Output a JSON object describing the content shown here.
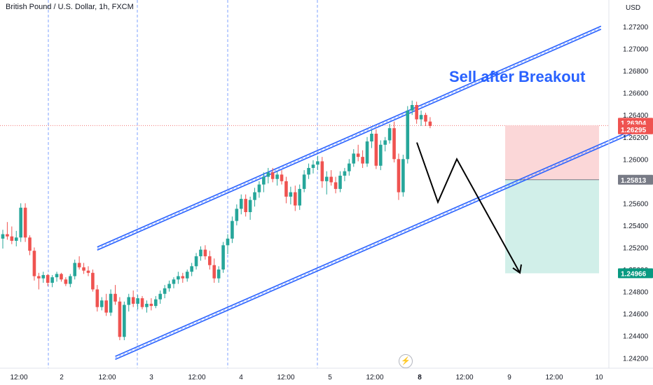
{
  "header": {
    "title": "British Pound / U.S. Dollar, 1h, FXCM",
    "currency": "USD"
  },
  "annotation": "Sell after Breakout",
  "logo_glyph": "⚡",
  "colors": {
    "bull": "#26a69a",
    "bear": "#ef5350",
    "channel": "#2962ff",
    "stop_zone": "#fbd7d8",
    "target_zone": "#d1efe9",
    "arrow": "#000000"
  },
  "chart_data": {
    "type": "candlestick",
    "symbol": "GBPUSD",
    "timeframe": "1h",
    "y_axis": {
      "min": 1.241,
      "max": 1.274,
      "ticks": [
        "1.27200",
        "1.27000",
        "1.26800",
        "1.26600",
        "1.26400",
        "1.26200",
        "1.26000",
        "1.25800",
        "1.25600",
        "1.25400",
        "1.25200",
        "1.25000",
        "1.24800",
        "1.24600",
        "1.24400",
        "1.24200"
      ]
    },
    "x_axis": {
      "labels": [
        "12:00",
        "2",
        "12:00",
        "3",
        "12:00",
        "4",
        "12:00",
        "5",
        "12:00",
        "8",
        "12:00",
        "9",
        "12:00",
        "10"
      ]
    },
    "price_labels": [
      {
        "value": "1.26304",
        "style": "red"
      },
      {
        "value": "1.26295",
        "style": "red"
      },
      {
        "value": "1.25813",
        "style": "gray"
      },
      {
        "value": "1.24966",
        "style": "green"
      }
    ],
    "candles": [
      [
        1.2528,
        1.2536,
        1.2519,
        1.2532
      ],
      [
        1.2532,
        1.2543,
        1.2527,
        1.253
      ],
      [
        1.253,
        1.2539,
        1.2523,
        1.2526
      ],
      [
        1.2526,
        1.2535,
        1.2521,
        1.2529
      ],
      [
        1.2529,
        1.256,
        1.2525,
        1.2556
      ],
      [
        1.2556,
        1.256,
        1.2525,
        1.2529
      ],
      [
        1.2529,
        1.2531,
        1.2513,
        1.2517
      ],
      [
        1.2517,
        1.252,
        1.249,
        1.2494
      ],
      [
        1.2494,
        1.2497,
        1.2482,
        1.2492
      ],
      [
        1.2492,
        1.2498,
        1.2488,
        1.2495
      ],
      [
        1.2495,
        1.2496,
        1.2485,
        1.2488
      ],
      [
        1.2488,
        1.2495,
        1.2484,
        1.2493
      ],
      [
        1.2493,
        1.2498,
        1.2489,
        1.2496
      ],
      [
        1.2496,
        1.2497,
        1.2489,
        1.2491
      ],
      [
        1.2491,
        1.2493,
        1.2485,
        1.2487
      ],
      [
        1.2487,
        1.2496,
        1.2484,
        1.2494
      ],
      [
        1.2494,
        1.2509,
        1.2491,
        1.2506
      ],
      [
        1.2506,
        1.2512,
        1.25,
        1.2502
      ],
      [
        1.2502,
        1.2506,
        1.2496,
        1.2499
      ],
      [
        1.2499,
        1.2503,
        1.2494,
        1.2497
      ],
      [
        1.2497,
        1.25,
        1.248,
        1.2482
      ],
      [
        1.2482,
        1.2486,
        1.2462,
        1.2466
      ],
      [
        1.2466,
        1.2475,
        1.2463,
        1.2472
      ],
      [
        1.2472,
        1.2478,
        1.2458,
        1.2461
      ],
      [
        1.2461,
        1.2482,
        1.2458,
        1.2478
      ],
      [
        1.2478,
        1.2486,
        1.2468,
        1.2471
      ],
      [
        1.2471,
        1.2475,
        1.2436,
        1.2439
      ],
      [
        1.2439,
        1.2471,
        1.2436,
        1.2468
      ],
      [
        1.2468,
        1.2478,
        1.2462,
        1.2475
      ],
      [
        1.2475,
        1.2481,
        1.2466,
        1.2469
      ],
      [
        1.2469,
        1.2477,
        1.2464,
        1.2474
      ],
      [
        1.2474,
        1.2476,
        1.2464,
        1.2466
      ],
      [
        1.2466,
        1.2472,
        1.2461,
        1.2469
      ],
      [
        1.2469,
        1.2474,
        1.2463,
        1.2467
      ],
      [
        1.2467,
        1.2476,
        1.2465,
        1.2473
      ],
      [
        1.2473,
        1.2481,
        1.2469,
        1.2478
      ],
      [
        1.2478,
        1.2486,
        1.2474,
        1.2483
      ],
      [
        1.2483,
        1.249,
        1.248,
        1.2487
      ],
      [
        1.2487,
        1.2493,
        1.2483,
        1.2491
      ],
      [
        1.2491,
        1.2498,
        1.2487,
        1.2494
      ],
      [
        1.2494,
        1.2497,
        1.2488,
        1.2492
      ],
      [
        1.2492,
        1.25,
        1.2489,
        1.2498
      ],
      [
        1.2498,
        1.2506,
        1.2494,
        1.2503
      ],
      [
        1.2503,
        1.2515,
        1.25,
        1.2512
      ],
      [
        1.2512,
        1.2521,
        1.2508,
        1.2518
      ],
      [
        1.2518,
        1.2522,
        1.2509,
        1.2512
      ],
      [
        1.2512,
        1.2517,
        1.25,
        1.2504
      ],
      [
        1.2504,
        1.251,
        1.2488,
        1.2492
      ],
      [
        1.2492,
        1.2503,
        1.2488,
        1.25
      ],
      [
        1.25,
        1.2525,
        1.2497,
        1.2522
      ],
      [
        1.2522,
        1.2532,
        1.2514,
        1.2528
      ],
      [
        1.2528,
        1.2548,
        1.2524,
        1.2544
      ],
      [
        1.2544,
        1.2559,
        1.254,
        1.2555
      ],
      [
        1.2555,
        1.2568,
        1.255,
        1.2564
      ],
      [
        1.2564,
        1.2568,
        1.2548,
        1.2552
      ],
      [
        1.2552,
        1.2566,
        1.2545,
        1.2563
      ],
      [
        1.2563,
        1.2574,
        1.2557,
        1.257
      ],
      [
        1.257,
        1.258,
        1.2565,
        1.2577
      ],
      [
        1.2577,
        1.2588,
        1.257,
        1.2584
      ],
      [
        1.2584,
        1.2592,
        1.2578,
        1.2588
      ],
      [
        1.2588,
        1.2592,
        1.2579,
        1.2582
      ],
      [
        1.2582,
        1.2589,
        1.2576,
        1.2586
      ],
      [
        1.2586,
        1.259,
        1.2577,
        1.258
      ],
      [
        1.258,
        1.2584,
        1.256,
        1.2566
      ],
      [
        1.2566,
        1.2575,
        1.2559,
        1.257
      ],
      [
        1.257,
        1.2576,
        1.2553,
        1.2558
      ],
      [
        1.2558,
        1.2577,
        1.2554,
        1.2573
      ],
      [
        1.2573,
        1.259,
        1.257,
        1.2586
      ],
      [
        1.2586,
        1.2596,
        1.2582,
        1.2592
      ],
      [
        1.2592,
        1.2599,
        1.2587,
        1.2595
      ],
      [
        1.2595,
        1.2603,
        1.259,
        1.2598
      ],
      [
        1.2598,
        1.2602,
        1.2574,
        1.258
      ],
      [
        1.258,
        1.2589,
        1.2568,
        1.2584
      ],
      [
        1.2584,
        1.259,
        1.2576,
        1.2579
      ],
      [
        1.2579,
        1.2584,
        1.2569,
        1.2573
      ],
      [
        1.2573,
        1.2589,
        1.257,
        1.2585
      ],
      [
        1.2585,
        1.2592,
        1.258,
        1.2589
      ],
      [
        1.2589,
        1.26,
        1.2585,
        1.2596
      ],
      [
        1.2596,
        1.2609,
        1.2593,
        1.2605
      ],
      [
        1.2605,
        1.2613,
        1.2598,
        1.2602
      ],
      [
        1.2602,
        1.2608,
        1.2592,
        1.2596
      ],
      [
        1.2596,
        1.262,
        1.2593,
        1.2616
      ],
      [
        1.2616,
        1.2627,
        1.261,
        1.2623
      ],
      [
        1.2623,
        1.2627,
        1.2591,
        1.2594
      ],
      [
        1.2594,
        1.2617,
        1.259,
        1.2613
      ],
      [
        1.2613,
        1.262,
        1.2607,
        1.2617
      ],
      [
        1.2617,
        1.2632,
        1.2614,
        1.2628
      ],
      [
        1.2628,
        1.2634,
        1.2597,
        1.26
      ],
      [
        1.26,
        1.2605,
        1.2563,
        1.257
      ],
      [
        1.257,
        1.2604,
        1.2566,
        1.26
      ],
      [
        1.26,
        1.2648,
        1.2596,
        1.2644
      ],
      [
        1.2644,
        1.2653,
        1.264,
        1.2649
      ],
      [
        1.2649,
        1.2652,
        1.2632,
        1.2636
      ],
      [
        1.2636,
        1.2644,
        1.263,
        1.264
      ],
      [
        1.264,
        1.2642,
        1.263,
        1.2634
      ],
      [
        1.2634,
        1.2638,
        1.2628,
        1.263
      ]
    ],
    "channel": {
      "upper": [
        [
          "index 21",
          1.2519
        ],
        [
          "index 133",
          1.2719
        ]
      ],
      "lower": [
        [
          "index 25",
          1.242
        ],
        [
          "index 144",
          1.2632
        ]
      ]
    },
    "projection_path": [
      1.2615,
      1.2561,
      1.26,
      1.2497
    ],
    "risk_reward": {
      "entry": 1.26304,
      "stop": 1.26295,
      "stop_zone_top": 1.26304,
      "zone_split": 1.25813,
      "target": 1.24966
    }
  }
}
